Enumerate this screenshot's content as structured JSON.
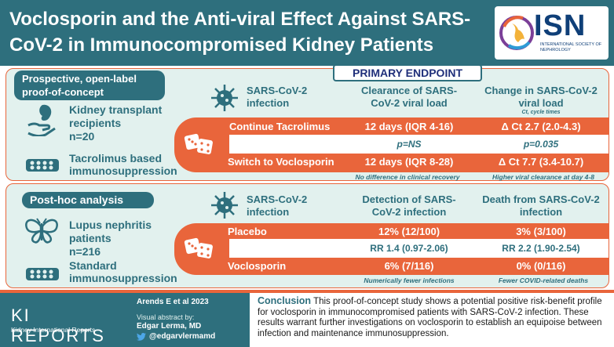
{
  "header": {
    "title": "Voclosporin and the Anti-viral Effect Against SARS-CoV-2 in Immunocompromised Kidney Patients",
    "logo_text": "ISN",
    "logo_sub": "INTERNATIONAL SOCIETY OF NEPHROLOGY"
  },
  "study1": {
    "tag": "Prospective, open-label proof-of-concept",
    "population_label": "Kidney transplant recipients",
    "population_n": "n=20",
    "treatment_label": "Tacrolimus based immunosuppression",
    "endpoint_tag": "PRIMARY ENDPOINT",
    "infection_label": "SARS-CoV-2 infection",
    "col1_header": "Clearance of SARS-CoV-2 viral load",
    "col2_header": "Change in SARS-CoV-2 viral load",
    "col2_note": "Ct, cycle times",
    "arm1_label": "Continue Tacrolimus",
    "arm1_val1": "12 days (IQR 4-16)",
    "arm1_val2": "Δ Ct 2.7 (2.0-4.3)",
    "p1": "p=NS",
    "p2": "p=0.035",
    "arm2_label": "Switch to Voclosporin",
    "arm2_val1": "12 days (IQR 8-28)",
    "arm2_val2": "Δ Ct 7.7 (3.4-10.7)",
    "note1": "No difference in clinical recovery",
    "note2": "Higher viral clearance at day 4-8"
  },
  "study2": {
    "tag": "Post-hoc analysis",
    "population_label": "Lupus nephritis patients",
    "population_n": "n=216",
    "treatment_label": "Standard immunosuppression",
    "infection_label": "SARS-CoV-2 infection",
    "col1_header": "Detection of SARS-CoV-2 infection",
    "col2_header": "Death from SARS-CoV-2 infection",
    "arm1_label": "Placebo",
    "arm1_val1": "12% (12/100)",
    "arm1_val2": "3% (3/100)",
    "rr1": "RR 1.4 (0.97-2.06)",
    "rr2": "RR 2.2 (1.90-2.54)",
    "arm2_label": "Voclosporin",
    "arm2_val1": "6% (7/116)",
    "arm2_val2": "0% (0/116)",
    "note1": "Numerically fewer infections",
    "note2": "Fewer COVID-related deaths"
  },
  "footer": {
    "journal": "KI REPORTS",
    "journal_sub": "Kidney International Reports",
    "citation": "Arends E et al 2023",
    "credit_label": "Visual abstract by:",
    "credit_name": "Edgar Lerma, MD",
    "twitter": "@edgarvlermamd",
    "conclusion_label": "Conclusion",
    "conclusion_text": "This proof-of-concept study shows a potential positive risk-benefit profile for voclosporin in immunocompromised patients with SARS-CoV-2 infection. These results warrant further investigations on voclosporin to establish an equipoise between infection and maintenance immunosuppression."
  },
  "colors": {
    "teal": "#2e6f7d",
    "orange": "#e9653b",
    "panel_bg": "#e2f1ee",
    "navy": "#0f3f78"
  },
  "icons": [
    "kidney-hand-icon",
    "pill-pack-icon",
    "virus-icon",
    "dice-icon",
    "butterfly-icon",
    "twitter-icon",
    "isn-globe-icon"
  ]
}
